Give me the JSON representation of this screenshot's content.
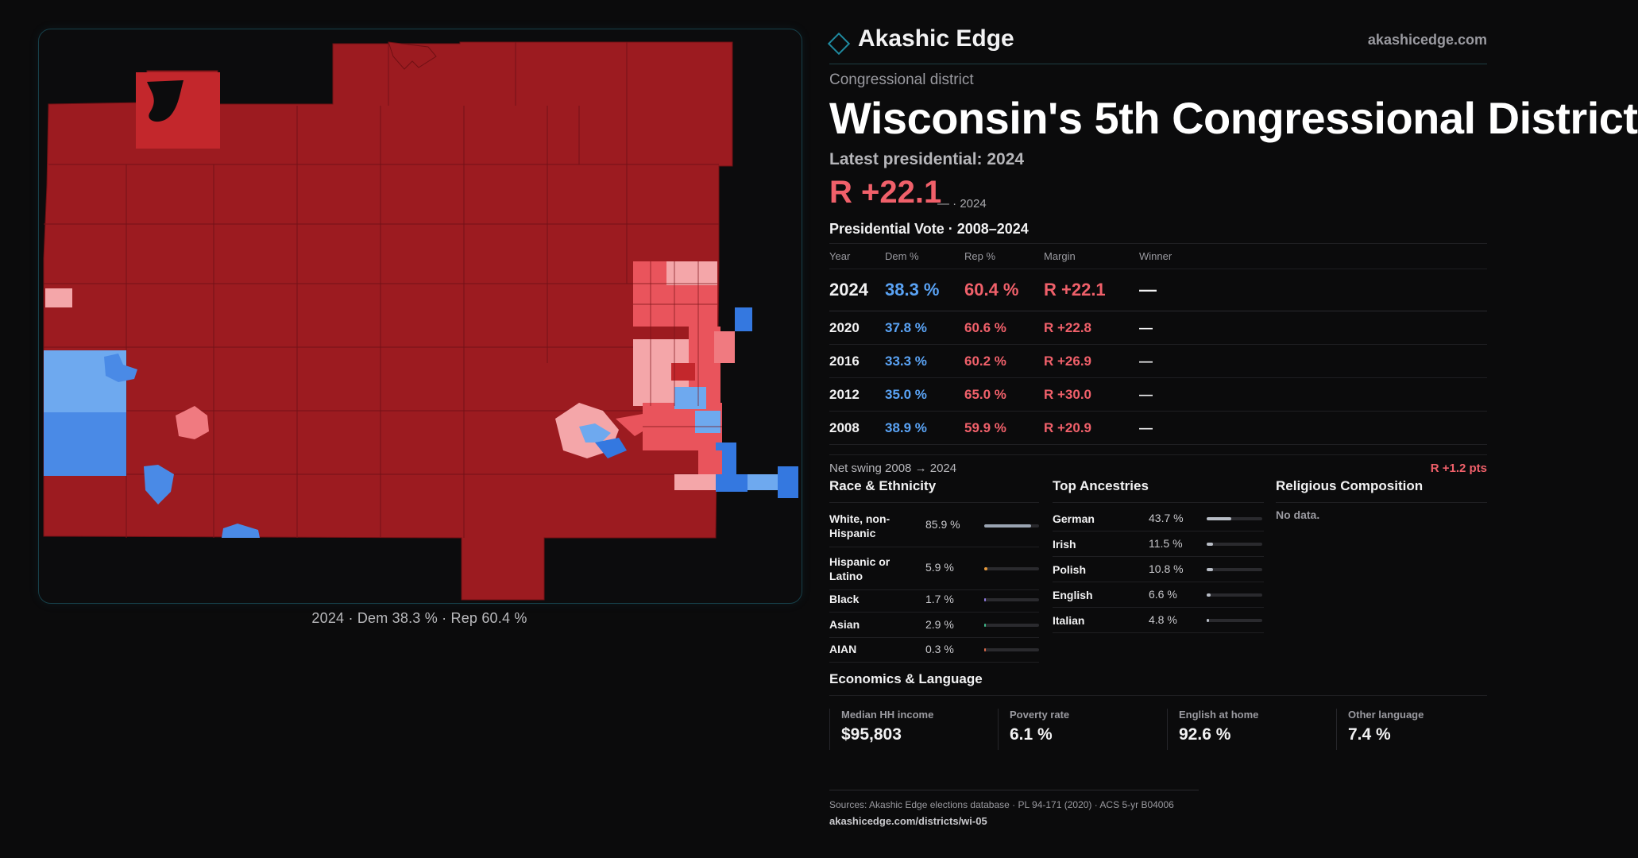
{
  "map": {
    "caption": "2024 · Dem 38.3 % · Rep 60.4 %",
    "colors": {
      "safe_r": "#9c1b20",
      "likely_r": "#c3272c",
      "lean_r": "#e9545c",
      "tilt_r": "#f4a6a9",
      "lean_d": "#6ea9ef",
      "safe_d": "#3478e0",
      "background": "#0c0c0d"
    }
  },
  "header": {
    "brand": "Akashic Edge",
    "site": "akashicedge.com"
  },
  "district": {
    "kicker": "Congressional district",
    "title": "Wisconsin's 5th Congressional District"
  },
  "latest": {
    "label": "Latest presidential: 2024",
    "margin": "R +22.1",
    "sub": "— · 2024"
  },
  "vote": {
    "title": "Presidential Vote · 2008–2024",
    "headers": [
      "Year",
      "Dem %",
      "Rep %",
      "Margin",
      "Winner"
    ],
    "rows": [
      {
        "year": "2024",
        "dem": "38.3 %",
        "rep": "60.4 %",
        "margin": "R +22.1",
        "winner": "—"
      },
      {
        "year": "2020",
        "dem": "37.8 %",
        "rep": "60.6 %",
        "margin": "R +22.8",
        "winner": "—"
      },
      {
        "year": "2016",
        "dem": "33.3 %",
        "rep": "60.2 %",
        "margin": "R +26.9",
        "winner": "—"
      },
      {
        "year": "2012",
        "dem": "35.0 %",
        "rep": "65.0 %",
        "margin": "R +30.0",
        "winner": "—"
      },
      {
        "year": "2008",
        "dem": "38.9 %",
        "rep": "59.9 %",
        "margin": "R +20.9",
        "winner": "—"
      }
    ]
  },
  "swing": {
    "label": "Net swing 2008 → 2024",
    "value": "R +1.2 pts"
  },
  "race": {
    "title": "Race & Ethnicity",
    "items": [
      {
        "label": "White, non-\nHispanic",
        "value": "85.9 %",
        "pct": 85.9,
        "color": "#9aa4b2"
      },
      {
        "label": "Hispanic or\nLatino",
        "value": "5.9 %",
        "pct": 5.9,
        "color": "#e89a3c"
      },
      {
        "label": "Black",
        "value": "1.7 %",
        "pct": 1.7,
        "color": "#8f7ae0"
      },
      {
        "label": "Asian",
        "value": "2.9 %",
        "pct": 2.9,
        "color": "#3fb98a"
      },
      {
        "label": "AIAN",
        "value": "0.3 %",
        "pct": 0.3,
        "color": "#d9694a"
      }
    ]
  },
  "ancestry": {
    "title": "Top Ancestries",
    "items": [
      {
        "label": "German",
        "value": "43.7 %",
        "pct": 43.7
      },
      {
        "label": "Irish",
        "value": "11.5 %",
        "pct": 11.5
      },
      {
        "label": "Polish",
        "value": "10.8 %",
        "pct": 10.8
      },
      {
        "label": "English",
        "value": "6.6 %",
        "pct": 6.6
      },
      {
        "label": "Italian",
        "value": "4.8 %",
        "pct": 4.8
      }
    ],
    "bar_color": "#b8bdc6"
  },
  "religion": {
    "title": "Religious Composition",
    "empty": "No data."
  },
  "economics": {
    "title": "Economics & Language",
    "cards": [
      {
        "label": "Median HH income",
        "value": "$95,803"
      },
      {
        "label": "Poverty rate",
        "value": "6.1 %"
      },
      {
        "label": "English at home",
        "value": "92.6 %"
      },
      {
        "label": "Other language",
        "value": "7.4 %"
      }
    ]
  },
  "footer": {
    "sources": "Sources: Akashic Edge elections database · PL 94-171 (2020) · ACS 5-yr B04006",
    "url": "akashicedge.com/districts/wi-05"
  }
}
